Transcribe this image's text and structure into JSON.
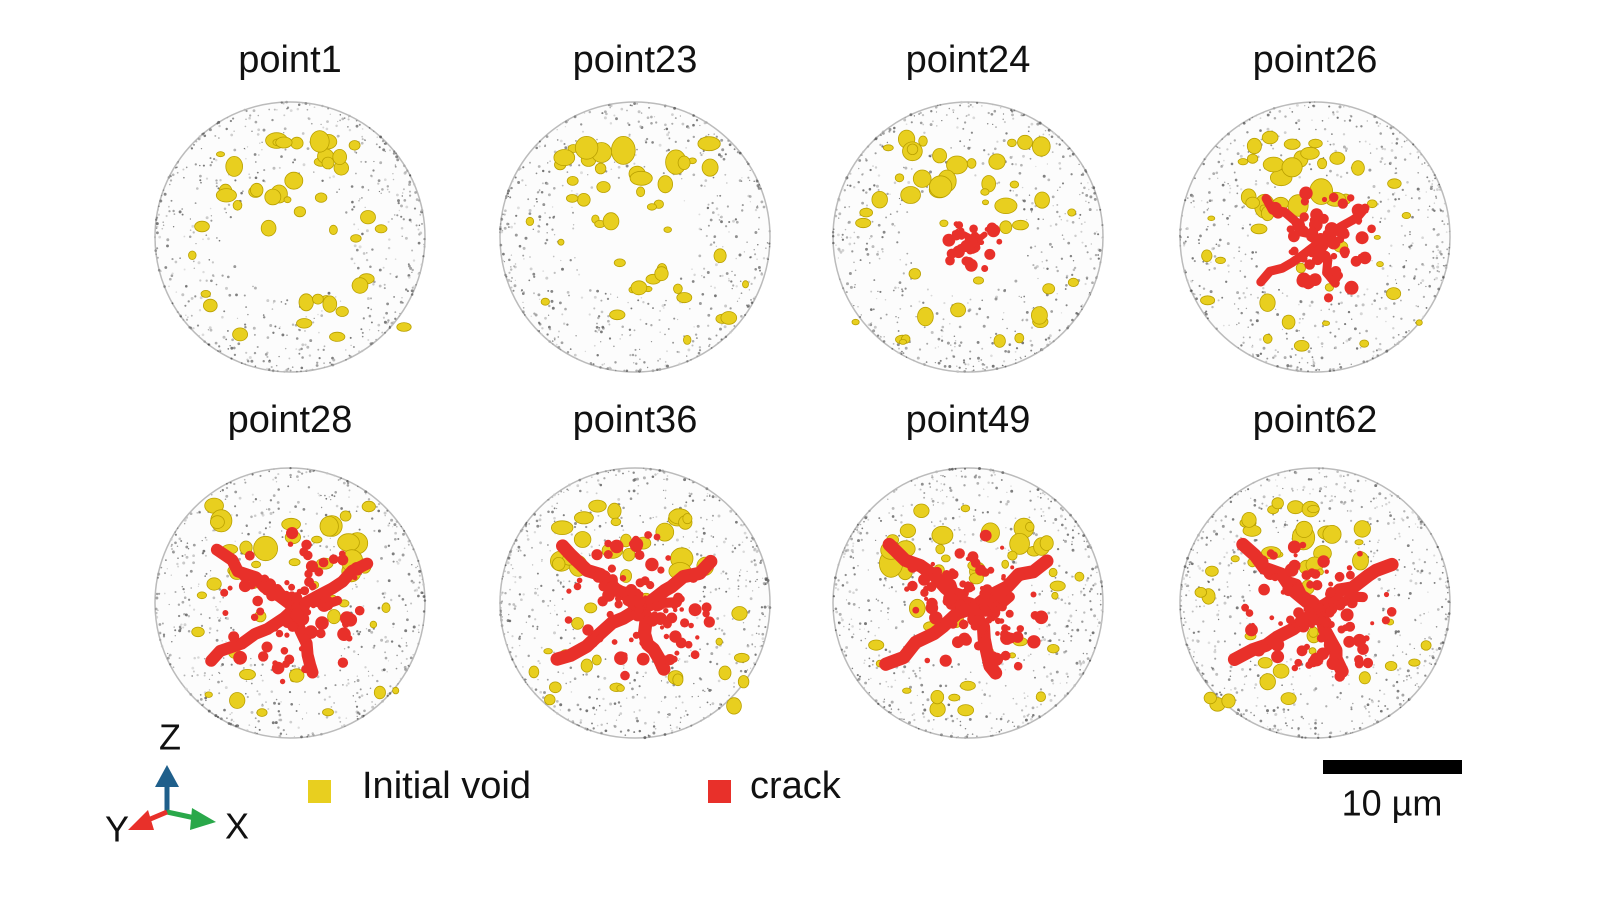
{
  "panels": [
    {
      "label": "point1"
    },
    {
      "label": "point23"
    },
    {
      "label": "point24"
    },
    {
      "label": "point26"
    },
    {
      "label": "point28"
    },
    {
      "label": "point36"
    },
    {
      "label": "point49"
    },
    {
      "label": "point62"
    }
  ],
  "legend": [
    {
      "label": "Initial void",
      "color": "#e8cf1f"
    },
    {
      "label": "crack",
      "color": "#e8302a"
    }
  ],
  "axes": {
    "z": "Z",
    "y": "Y",
    "x": "X"
  },
  "scale_bar": {
    "label": "10 µm"
  }
}
